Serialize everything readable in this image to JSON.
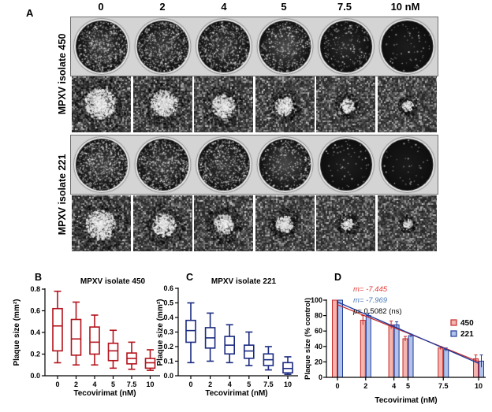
{
  "figure": {
    "panel_a": {
      "label": "A",
      "column_labels": [
        "0",
        "2",
        "4",
        "5",
        "7.5",
        "10 nM"
      ],
      "row_labels": [
        "MPXV isolate 450",
        "MPXV isolate 221"
      ]
    }
  },
  "chart_data": [
    {
      "panel_label": "B",
      "type": "box",
      "title": "MPXV isolate 450",
      "xlabel": "Tecovirimat (nM)",
      "ylabel": "Plaque size (mm²)",
      "categories": [
        "0",
        "2",
        "4",
        "5",
        "7.5",
        "10"
      ],
      "ylim": [
        0,
        0.8
      ],
      "yticks": [
        "0.0",
        "0.2",
        "0.4",
        "0.6",
        "0.8"
      ],
      "color": "#b3121c",
      "boxes": [
        {
          "min": 0.12,
          "q1": 0.23,
          "median": 0.46,
          "q3": 0.62,
          "max": 0.78
        },
        {
          "min": 0.1,
          "q1": 0.19,
          "median": 0.34,
          "q3": 0.52,
          "max": 0.68
        },
        {
          "min": 0.1,
          "q1": 0.2,
          "median": 0.31,
          "q3": 0.45,
          "max": 0.56
        },
        {
          "min": 0.07,
          "q1": 0.14,
          "median": 0.23,
          "q3": 0.3,
          "max": 0.42
        },
        {
          "min": 0.06,
          "q1": 0.11,
          "median": 0.16,
          "q3": 0.21,
          "max": 0.31
        },
        {
          "min": 0.05,
          "q1": 0.07,
          "median": 0.12,
          "q3": 0.16,
          "max": 0.24
        }
      ]
    },
    {
      "panel_label": "C",
      "type": "box",
      "title": "MPXV isolate 221",
      "xlabel": "Tecovirimat (nM)",
      "ylabel": "Plaque size (mm²)",
      "categories": [
        "0",
        "2",
        "4",
        "5",
        "7.5",
        "10"
      ],
      "ylim": [
        0,
        0.6
      ],
      "yticks": [
        "0.0",
        "0.1",
        "0.2",
        "0.3",
        "0.4",
        "0.5",
        "0.6"
      ],
      "color": "#1a2a80",
      "boxes": [
        {
          "min": 0.09,
          "q1": 0.23,
          "median": 0.31,
          "q3": 0.38,
          "max": 0.5
        },
        {
          "min": 0.1,
          "q1": 0.19,
          "median": 0.26,
          "q3": 0.33,
          "max": 0.43
        },
        {
          "min": 0.09,
          "q1": 0.15,
          "median": 0.21,
          "q3": 0.27,
          "max": 0.35
        },
        {
          "min": 0.07,
          "q1": 0.12,
          "median": 0.17,
          "q3": 0.21,
          "max": 0.3
        },
        {
          "min": 0.04,
          "q1": 0.07,
          "median": 0.11,
          "q3": 0.15,
          "max": 0.2
        },
        {
          "min": 0.01,
          "q1": 0.02,
          "median": 0.05,
          "q3": 0.09,
          "max": 0.13
        }
      ]
    },
    {
      "panel_label": "D",
      "type": "bar",
      "xlabel": "Tecovirimat (nM)",
      "ylabel": "Plaque size (% control)",
      "x": [
        0,
        2,
        4,
        5,
        7.5,
        10
      ],
      "xticks": [
        "0",
        "2",
        "4",
        "5",
        "7.5",
        "10"
      ],
      "xlim": [
        0,
        10
      ],
      "ylim": [
        0,
        100
      ],
      "yticks": [
        "0",
        "20",
        "40",
        "60",
        "80",
        "100"
      ],
      "legend": "right",
      "series": [
        {
          "name": "450",
          "values": [
            100,
            74,
            68,
            50,
            38,
            24
          ],
          "errors": [
            0,
            6,
            5,
            3,
            2,
            5
          ],
          "slope": "m= -7.445",
          "color": "#c62828",
          "fill": "#f3b5ad",
          "label_color": "#e53935"
        },
        {
          "name": "221",
          "values": [
            100,
            80,
            68,
            54,
            36,
            21
          ],
          "errors": [
            0,
            3,
            4,
            2,
            2,
            8
          ],
          "slope": "m= -7.969",
          "color": "#1e3a9a",
          "fill": "#b2c3ea",
          "label_color": "#4a78b8"
        }
      ],
      "p_value": {
        "prefix": "p=",
        "text": " 0.5082 (ns)"
      }
    }
  ]
}
